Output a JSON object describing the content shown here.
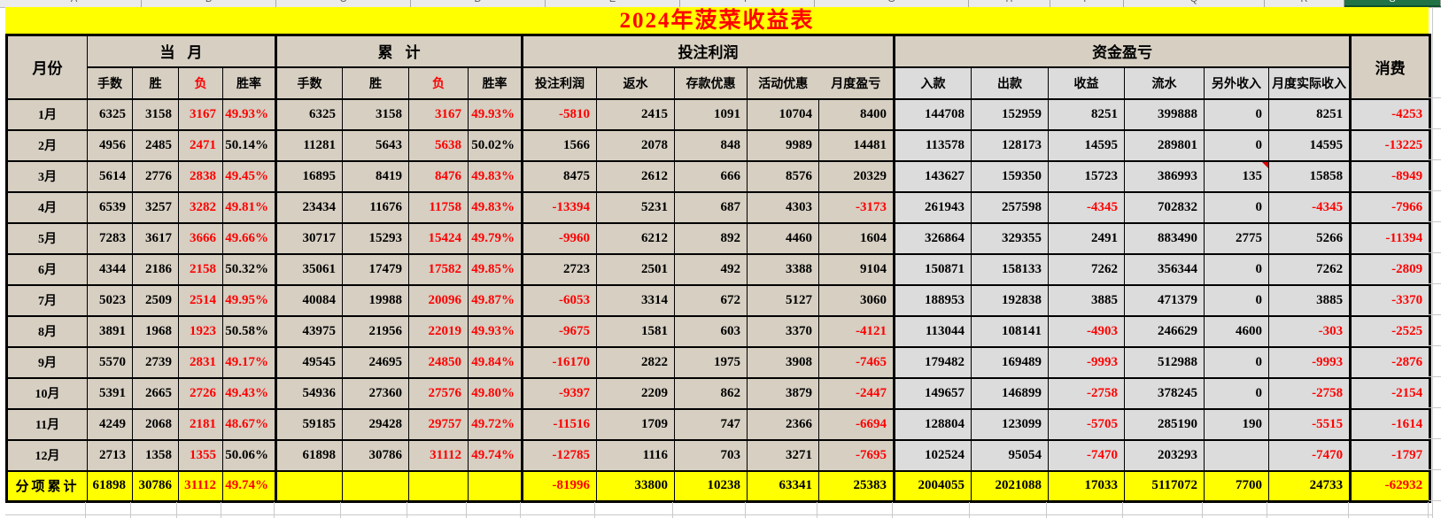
{
  "title": "2024年菠菜收益表",
  "colors": {
    "title_text": "#ff0000",
    "title_bg": "#ffff00",
    "cell_beige": "#d6cfc2",
    "cell_gray": "#dcdcdc",
    "total_bg": "#ffff00",
    "negative_red": "#fe0000",
    "selected_column_green": "#217346",
    "border_black": "#000000"
  },
  "column_strip": {
    "letters": [
      "A",
      "B",
      "C",
      "D",
      "E",
      "F",
      "G",
      "H",
      "P",
      "Q",
      "R",
      "S",
      "U"
    ],
    "selected_letter": "S",
    "selected_index": 11
  },
  "table": {
    "corner_header": "月份",
    "groups": [
      {
        "label": "当月",
        "span": 4
      },
      {
        "label": "累计",
        "span": 4
      },
      {
        "label": "投注利润",
        "span": 5
      },
      {
        "label": "资金盈亏",
        "span": 6
      }
    ],
    "last_header": "消费",
    "sub_headers": [
      "手数",
      "胜",
      "负",
      "胜率",
      "手数",
      "胜",
      "负",
      "胜率",
      "投注利润",
      "返水",
      "存款优惠",
      "活动优惠",
      "月度盈亏",
      "入款",
      "出款",
      "收益",
      "流水",
      "另外收入",
      "月度实际收入"
    ],
    "note_cell": {
      "row": 2,
      "col": 17
    },
    "rows": [
      {
        "month": "1月",
        "cells": [
          "6325",
          "3158",
          "3167",
          "49.93%",
          "6325",
          "3158",
          "3167",
          "49.93%",
          "-5810",
          "2415",
          "1091",
          "10704",
          "8400",
          "144708",
          "152959",
          "8251",
          "399888",
          "0",
          "8251",
          "-4253"
        ]
      },
      {
        "month": "2月",
        "cells": [
          "4956",
          "2485",
          "2471",
          "50.14%",
          "11281",
          "5643",
          "5638",
          "50.02%",
          "1566",
          "2078",
          "848",
          "9989",
          "14481",
          "113578",
          "128173",
          "14595",
          "289801",
          "0",
          "14595",
          "-13225"
        ]
      },
      {
        "month": "3月",
        "cells": [
          "5614",
          "2776",
          "2838",
          "49.45%",
          "16895",
          "8419",
          "8476",
          "49.83%",
          "8475",
          "2612",
          "666",
          "8576",
          "20329",
          "143627",
          "159350",
          "15723",
          "386993",
          "135",
          "15858",
          "-8949"
        ]
      },
      {
        "month": "4月",
        "cells": [
          "6539",
          "3257",
          "3282",
          "49.81%",
          "23434",
          "11676",
          "11758",
          "49.83%",
          "-13394",
          "5231",
          "687",
          "4303",
          "-3173",
          "261943",
          "257598",
          "-4345",
          "702832",
          "0",
          "-4345",
          "-7966"
        ]
      },
      {
        "month": "5月",
        "cells": [
          "7283",
          "3617",
          "3666",
          "49.66%",
          "30717",
          "15293",
          "15424",
          "49.79%",
          "-9960",
          "6212",
          "892",
          "4460",
          "1604",
          "326864",
          "329355",
          "2491",
          "883490",
          "2775",
          "5266",
          "-11394"
        ]
      },
      {
        "month": "6月",
        "cells": [
          "4344",
          "2186",
          "2158",
          "50.32%",
          "35061",
          "17479",
          "17582",
          "49.85%",
          "2723",
          "2501",
          "492",
          "3388",
          "9104",
          "150871",
          "158133",
          "7262",
          "356344",
          "0",
          "7262",
          "-2809"
        ]
      },
      {
        "month": "7月",
        "cells": [
          "5023",
          "2509",
          "2514",
          "49.95%",
          "40084",
          "19988",
          "20096",
          "49.87%",
          "-6053",
          "3314",
          "672",
          "5127",
          "3060",
          "188953",
          "192838",
          "3885",
          "471379",
          "0",
          "3885",
          "-3370"
        ]
      },
      {
        "month": "8月",
        "cells": [
          "3891",
          "1968",
          "1923",
          "50.58%",
          "43975",
          "21956",
          "22019",
          "49.93%",
          "-9675",
          "1581",
          "603",
          "3370",
          "-4121",
          "113044",
          "108141",
          "-4903",
          "246629",
          "4600",
          "-303",
          "-2525"
        ]
      },
      {
        "month": "9月",
        "cells": [
          "5570",
          "2739",
          "2831",
          "49.17%",
          "49545",
          "24695",
          "24850",
          "49.84%",
          "-16170",
          "2822",
          "1975",
          "3908",
          "-7465",
          "179482",
          "169489",
          "-9993",
          "512988",
          "0",
          "-9993",
          "-2876"
        ]
      },
      {
        "month": "10月",
        "cells": [
          "5391",
          "2665",
          "2726",
          "49.43%",
          "54936",
          "27360",
          "27576",
          "49.80%",
          "-9397",
          "2209",
          "862",
          "3879",
          "-2447",
          "149657",
          "146899",
          "-2758",
          "378245",
          "0",
          "-2758",
          "-2154"
        ]
      },
      {
        "month": "11月",
        "cells": [
          "4249",
          "2068",
          "2181",
          "48.67%",
          "59185",
          "29428",
          "29757",
          "49.72%",
          "-11516",
          "1709",
          "747",
          "2366",
          "-6694",
          "128804",
          "123099",
          "-5705",
          "285190",
          "190",
          "-5515",
          "-1614"
        ]
      },
      {
        "month": "12月",
        "cells": [
          "2713",
          "1358",
          "1355",
          "50.06%",
          "61898",
          "30786",
          "31112",
          "49.74%",
          "-12785",
          "1116",
          "703",
          "3271",
          "-7695",
          "102524",
          "95054",
          "-7470",
          "203293",
          "",
          "-7470",
          "-1797"
        ]
      }
    ],
    "total_row": {
      "label": "分项累计",
      "cells": [
        "61898",
        "30786",
        "31112",
        "49.74%",
        "",
        "",
        "",
        "",
        "-81996",
        "33800",
        "10238",
        "63341",
        "25383",
        "2004055",
        "2021088",
        "17033",
        "5117072",
        "7700",
        "24733",
        "-62932"
      ]
    }
  }
}
